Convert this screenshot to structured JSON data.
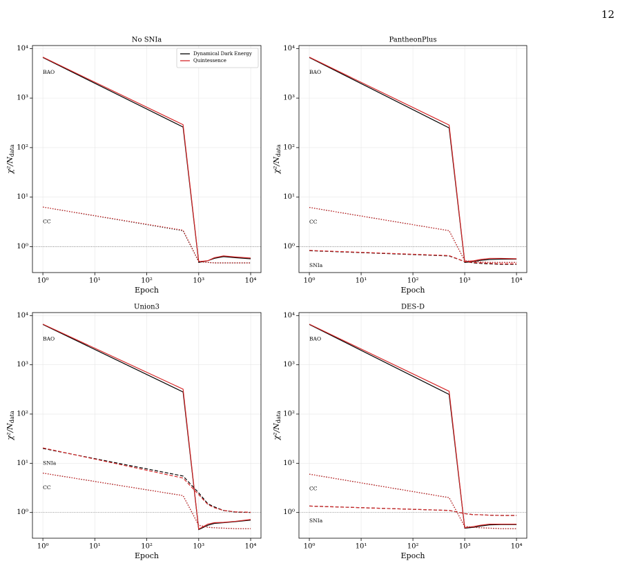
{
  "page_number": "12",
  "chart_data": [
    {
      "type": "line",
      "title": "No SNIa",
      "xlabel": "Epoch",
      "ylabel": "χ²/N",
      "ylabel_sub": "data",
      "log_x": true,
      "log_y": true,
      "grid": true,
      "hline": 1,
      "legend": "upper right",
      "xlim": [
        0.63,
        15800
      ],
      "ylim": [
        0.3,
        11500
      ],
      "xticks": [
        {
          "value": 1,
          "label": "10⁰"
        },
        {
          "value": 10,
          "label": "10¹"
        },
        {
          "value": 100,
          "label": "10²"
        },
        {
          "value": 1000,
          "label": "10³"
        },
        {
          "value": 10000,
          "label": "10⁴"
        }
      ],
      "yticks": [
        {
          "value": 1,
          "label": "10⁰"
        },
        {
          "value": 10,
          "label": "10¹"
        },
        {
          "value": 100,
          "label": "10²"
        },
        {
          "value": 1000,
          "label": "10³"
        },
        {
          "value": 10000,
          "label": "10⁴"
        }
      ],
      "x": [
        1,
        500,
        1000,
        1500,
        2000,
        3000,
        5000,
        10000
      ],
      "series": [
        {
          "name": "Dynamical Dark Energy",
          "color": "#000000",
          "probe": "BAO",
          "dash": "solid",
          "values": [
            6600,
            260,
            0.48,
            0.52,
            0.58,
            0.63,
            0.6,
            0.57
          ]
        },
        {
          "name": "Quintessence",
          "color": "#d62728",
          "probe": "BAO",
          "dash": "solid",
          "values": [
            6700,
            290,
            0.5,
            0.52,
            0.6,
            0.65,
            0.62,
            0.59
          ]
        },
        {
          "name": "Dynamical Dark Energy",
          "color": "#000000",
          "probe": "CC",
          "dash": "dotted",
          "values": [
            6.3,
            2.1,
            0.5,
            0.48,
            0.47,
            0.47,
            0.47,
            0.47
          ]
        },
        {
          "name": "Quintessence",
          "color": "#d62728",
          "probe": "CC",
          "dash": "dotted",
          "values": [
            6.3,
            2.15,
            0.5,
            0.48,
            0.47,
            0.47,
            0.47,
            0.47
          ]
        }
      ]
    },
    {
      "type": "line",
      "title": "PantheonPlus",
      "xlabel": "Epoch",
      "ylabel": "χ²/N",
      "ylabel_sub": "data",
      "log_x": true,
      "log_y": true,
      "grid": true,
      "hline": 1,
      "xlim": [
        0.63,
        15800
      ],
      "ylim": [
        0.3,
        11500
      ],
      "xticks": [
        {
          "value": 1,
          "label": "10⁰"
        },
        {
          "value": 10,
          "label": "10¹"
        },
        {
          "value": 100,
          "label": "10²"
        },
        {
          "value": 1000,
          "label": "10³"
        },
        {
          "value": 10000,
          "label": "10⁴"
        }
      ],
      "yticks": [
        {
          "value": 1,
          "label": "10⁰"
        },
        {
          "value": 10,
          "label": "10¹"
        },
        {
          "value": 100,
          "label": "10²"
        },
        {
          "value": 1000,
          "label": "10³"
        },
        {
          "value": 10000,
          "label": "10⁴"
        }
      ],
      "x": [
        1,
        500,
        1000,
        1500,
        2000,
        3000,
        5000,
        10000
      ],
      "series": [
        {
          "name": "Dynamical Dark Energy",
          "color": "#000000",
          "probe": "BAO",
          "dash": "solid",
          "values": [
            6600,
            250,
            0.48,
            0.5,
            0.53,
            0.55,
            0.56,
            0.56
          ]
        },
        {
          "name": "Quintessence",
          "color": "#d62728",
          "probe": "BAO",
          "dash": "solid",
          "values": [
            6700,
            285,
            0.5,
            0.52,
            0.55,
            0.58,
            0.58,
            0.57
          ]
        },
        {
          "name": "Dynamical Dark Energy",
          "color": "#000000",
          "probe": "CC",
          "dash": "dotted",
          "values": [
            6.2,
            2.1,
            0.52,
            0.5,
            0.49,
            0.48,
            0.48,
            0.48
          ]
        },
        {
          "name": "Quintessence",
          "color": "#d62728",
          "probe": "CC",
          "dash": "dotted",
          "values": [
            6.2,
            2.1,
            0.52,
            0.5,
            0.49,
            0.48,
            0.48,
            0.48
          ]
        },
        {
          "name": "Dynamical Dark Energy",
          "color": "#000000",
          "probe": "SNIa",
          "dash": "dashed",
          "values": [
            0.83,
            0.65,
            0.5,
            0.47,
            0.46,
            0.45,
            0.44,
            0.44
          ]
        },
        {
          "name": "Quintessence",
          "color": "#d62728",
          "probe": "SNIa",
          "dash": "dashed",
          "values": [
            0.84,
            0.66,
            0.5,
            0.48,
            0.47,
            0.46,
            0.45,
            0.45
          ]
        }
      ]
    },
    {
      "type": "line",
      "title": "Union3",
      "xlabel": "Epoch",
      "ylabel": "χ²/N",
      "ylabel_sub": "data",
      "log_x": true,
      "log_y": true,
      "grid": true,
      "hline": 1,
      "xlim": [
        0.63,
        15800
      ],
      "ylim": [
        0.3,
        11500
      ],
      "xticks": [
        {
          "value": 1,
          "label": "10⁰"
        },
        {
          "value": 10,
          "label": "10¹"
        },
        {
          "value": 100,
          "label": "10²"
        },
        {
          "value": 1000,
          "label": "10³"
        },
        {
          "value": 10000,
          "label": "10⁴"
        }
      ],
      "yticks": [
        {
          "value": 1,
          "label": "10⁰"
        },
        {
          "value": 10,
          "label": "10¹"
        },
        {
          "value": 100,
          "label": "10²"
        },
        {
          "value": 1000,
          "label": "10³"
        },
        {
          "value": 10000,
          "label": "10⁴"
        }
      ],
      "x": [
        1,
        500,
        1000,
        1500,
        2000,
        3000,
        5000,
        10000
      ],
      "series": [
        {
          "name": "Dynamical Dark Energy",
          "color": "#000000",
          "probe": "BAO",
          "dash": "solid",
          "values": [
            6600,
            280,
            0.45,
            0.55,
            0.6,
            0.62,
            0.65,
            0.7
          ]
        },
        {
          "name": "Quintessence",
          "color": "#d62728",
          "probe": "BAO",
          "dash": "solid",
          "values": [
            6700,
            320,
            0.46,
            0.58,
            0.62,
            0.63,
            0.66,
            0.72
          ]
        },
        {
          "name": "Dynamical Dark Energy",
          "color": "#000000",
          "probe": "SNIa",
          "dash": "dashed",
          "values": [
            20,
            5.5,
            2.5,
            1.5,
            1.3,
            1.1,
            1.02,
            1.0
          ]
        },
        {
          "name": "Quintessence",
          "color": "#d62728",
          "probe": "SNIa",
          "dash": "dashed",
          "values": [
            20.5,
            5.0,
            2.3,
            1.45,
            1.25,
            1.1,
            1.03,
            1.01
          ]
        },
        {
          "name": "Dynamical Dark Energy",
          "color": "#000000",
          "probe": "CC",
          "dash": "dotted",
          "values": [
            6.3,
            2.2,
            0.55,
            0.5,
            0.49,
            0.48,
            0.47,
            0.47
          ]
        },
        {
          "name": "Quintessence",
          "color": "#d62728",
          "probe": "CC",
          "dash": "dotted",
          "values": [
            6.3,
            2.2,
            0.55,
            0.5,
            0.49,
            0.48,
            0.47,
            0.47
          ]
        }
      ]
    },
    {
      "type": "line",
      "title": "DES-D",
      "xlabel": "Epoch",
      "ylabel": "χ²/N",
      "ylabel_sub": "data",
      "log_x": true,
      "log_y": true,
      "grid": true,
      "hline": 1,
      "xlim": [
        0.63,
        15800
      ],
      "ylim": [
        0.3,
        11500
      ],
      "xticks": [
        {
          "value": 1,
          "label": "10⁰"
        },
        {
          "value": 10,
          "label": "10¹"
        },
        {
          "value": 100,
          "label": "10²"
        },
        {
          "value": 1000,
          "label": "10³"
        },
        {
          "value": 10000,
          "label": "10⁴"
        }
      ],
      "yticks": [
        {
          "value": 1,
          "label": "10⁰"
        },
        {
          "value": 10,
          "label": "10¹"
        },
        {
          "value": 100,
          "label": "10²"
        },
        {
          "value": 1000,
          "label": "10³"
        },
        {
          "value": 10000,
          "label": "10⁴"
        }
      ],
      "x": [
        1,
        500,
        1000,
        1500,
        2000,
        3000,
        5000,
        10000
      ],
      "series": [
        {
          "name": "Dynamical Dark Energy",
          "color": "#000000",
          "probe": "BAO",
          "dash": "solid",
          "values": [
            6600,
            250,
            0.48,
            0.5,
            0.53,
            0.56,
            0.57,
            0.57
          ]
        },
        {
          "name": "Quintessence",
          "color": "#d62728",
          "probe": "BAO",
          "dash": "solid",
          "values": [
            6700,
            290,
            0.49,
            0.52,
            0.55,
            0.58,
            0.58,
            0.58
          ]
        },
        {
          "name": "Dynamical Dark Energy",
          "color": "#000000",
          "probe": "CC",
          "dash": "dotted",
          "values": [
            6.0,
            2.0,
            0.52,
            0.5,
            0.49,
            0.48,
            0.47,
            0.47
          ]
        },
        {
          "name": "Quintessence",
          "color": "#d62728",
          "probe": "CC",
          "dash": "dotted",
          "values": [
            6.0,
            2.0,
            0.52,
            0.5,
            0.49,
            0.48,
            0.47,
            0.47
          ]
        },
        {
          "name": "Dynamical Dark Energy",
          "color": "#000000",
          "probe": "SNIa",
          "dash": "dashed",
          "values": [
            1.35,
            1.1,
            0.95,
            0.9,
            0.9,
            0.88,
            0.87,
            0.87
          ]
        },
        {
          "name": "Quintessence",
          "color": "#d62728",
          "probe": "SNIa",
          "dash": "dashed",
          "values": [
            1.35,
            1.1,
            0.95,
            0.9,
            0.9,
            0.88,
            0.87,
            0.87
          ]
        }
      ]
    }
  ]
}
